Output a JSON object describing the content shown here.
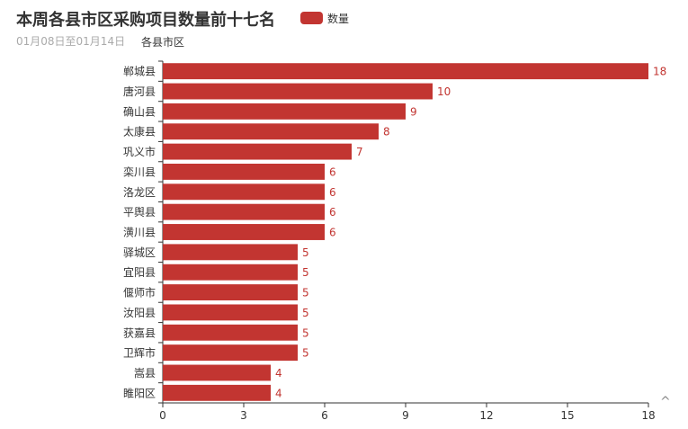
{
  "title": "本周各县市区采购项目数量前十七名",
  "subtitle": "01月08日至01月14日",
  "colors": {
    "bar": "#c23531",
    "axis": "#333333",
    "label_text": "#333333",
    "value_text": "#c23531"
  },
  "legend": {
    "label": "数量",
    "position": "top"
  },
  "scroll_icon": "^",
  "chart_data": {
    "type": "bar",
    "orientation": "horizontal",
    "title": "本周各县市区采购项目数量前十七名",
    "subtitle": "01月08日至01月14日",
    "ylabel": "各县市区",
    "xlabel": "",
    "categories": [
      "郸城县",
      "唐河县",
      "确山县",
      "太康县",
      "巩义市",
      "栾川县",
      "洛龙区",
      "平舆县",
      "潢川县",
      "驿城区",
      "宜阳县",
      "偃师市",
      "汝阳县",
      "获嘉县",
      "卫辉市",
      "嵩县",
      "睢阳区"
    ],
    "series": [
      {
        "name": "数量",
        "values": [
          18,
          10,
          9,
          8,
          7,
          6,
          6,
          6,
          6,
          5,
          5,
          5,
          5,
          5,
          5,
          4,
          4
        ]
      }
    ],
    "xlim": [
      0,
      18
    ],
    "xticks": [
      0,
      3,
      6,
      9,
      12,
      15,
      18
    ],
    "grid": false,
    "legend_position": "top"
  }
}
